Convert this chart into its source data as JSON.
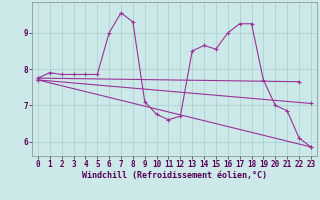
{
  "background_color": "#cce8e8",
  "grid_color": "#aad4d4",
  "line_color": "#993399",
  "marker": "+",
  "markersize": 3,
  "linewidth": 0.8,
  "xlim": [
    -0.5,
    23.5
  ],
  "ylim": [
    5.6,
    9.85
  ],
  "yticks": [
    6,
    7,
    8,
    9
  ],
  "xtick_labels": [
    "0",
    "1",
    "2",
    "3",
    "4",
    "5",
    "6",
    "7",
    "8",
    "9",
    "10",
    "11",
    "12",
    "13",
    "14",
    "15",
    "16",
    "17",
    "18",
    "19",
    "20",
    "21",
    "22",
    "23"
  ],
  "xtick_positions": [
    0,
    1,
    2,
    3,
    4,
    5,
    6,
    7,
    8,
    9,
    10,
    11,
    12,
    13,
    14,
    15,
    16,
    17,
    18,
    19,
    20,
    21,
    22,
    23
  ],
  "xlabel": "Windchill (Refroidissement éolien,°C)",
  "xlabel_fontsize": 6.0,
  "tick_fontsize": 5.5,
  "series": [
    {
      "x": [
        0,
        1,
        2,
        3,
        4,
        5,
        6,
        7,
        8,
        9,
        10,
        11,
        12,
        13,
        14,
        15,
        16,
        17,
        18,
        19,
        20,
        21,
        22,
        23
      ],
      "y": [
        7.75,
        7.9,
        7.85,
        7.85,
        7.85,
        7.85,
        9.0,
        9.55,
        9.3,
        7.1,
        6.75,
        6.6,
        6.7,
        8.5,
        8.65,
        8.55,
        9.0,
        9.25,
        9.25,
        7.7,
        7.0,
        6.85,
        6.1,
        5.85
      ]
    },
    {
      "x": [
        0,
        23
      ],
      "y": [
        7.7,
        5.85
      ]
    },
    {
      "x": [
        0,
        22
      ],
      "y": [
        7.75,
        7.65
      ]
    },
    {
      "x": [
        0,
        23
      ],
      "y": [
        7.7,
        7.05
      ]
    }
  ]
}
